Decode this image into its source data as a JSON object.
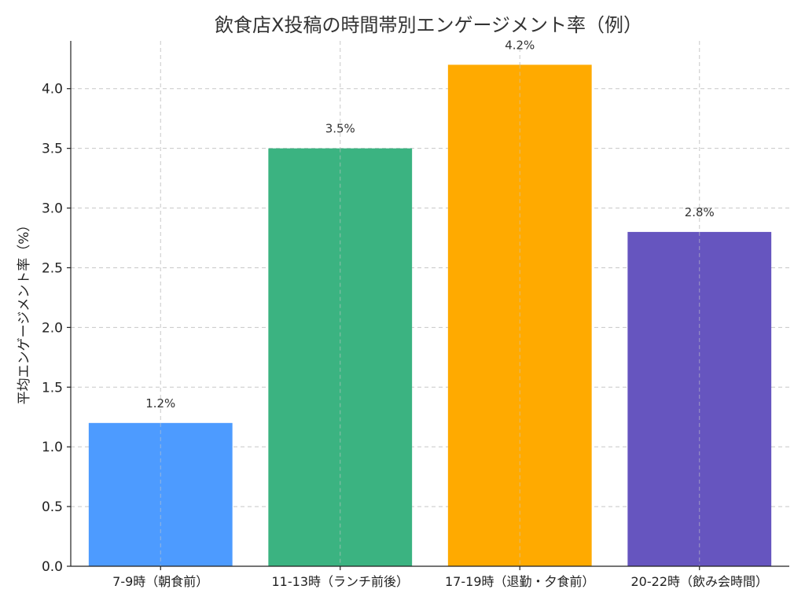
{
  "chart_data": {
    "type": "bar",
    "title": "飲食店X投稿の時間帯別エンゲージメント率（例）",
    "xlabel": "",
    "ylabel": "平均エンゲージメント率（%）",
    "categories": [
      "7-9時（朝食前）",
      "11-13時（ランチ前後）",
      "17-19時（退勤・夕食前）",
      "20-22時（飲み会時間）"
    ],
    "values": [
      1.2,
      3.5,
      4.2,
      2.8
    ],
    "data_labels": [
      "1.2%",
      "3.5%",
      "4.2%",
      "2.8%"
    ],
    "colors": [
      "#4d9bff",
      "#3bb381",
      "#ffaa00",
      "#6655bf"
    ],
    "ylim": [
      0,
      4.4
    ],
    "yticks": [
      "0.0",
      "0.5",
      "1.0",
      "1.5",
      "2.0",
      "2.5",
      "3.0",
      "3.5",
      "4.0"
    ],
    "grid": true,
    "legend": "none"
  }
}
